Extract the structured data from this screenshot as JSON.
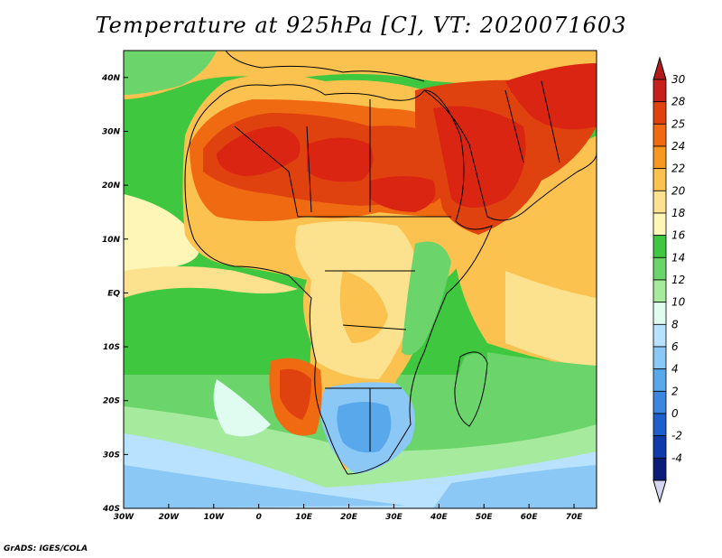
{
  "title": "Temperature at 925hPa [C], VT: 2020071603",
  "footer": "GrADS: IGES/COLA",
  "map": {
    "variable": "Temperature at 925hPa",
    "units": "C",
    "valid_time": "2020071603",
    "lon_range": [
      -30,
      75
    ],
    "lat_range": [
      -40,
      45
    ],
    "x_ticks": [
      "30W",
      "20W",
      "10W",
      "0",
      "10E",
      "20E",
      "30E",
      "40E",
      "50E",
      "60E",
      "70E"
    ],
    "y_ticks": [
      "40S",
      "30S",
      "20S",
      "10S",
      "EQ",
      "10N",
      "20N",
      "30N",
      "40N"
    ]
  },
  "colorbar": {
    "labels": [
      "30",
      "28",
      "25",
      "24",
      "22",
      "20",
      "18",
      "16",
      "14",
      "12",
      "10",
      "8",
      "6",
      "4",
      "2",
      "0",
      "-2",
      "-4"
    ],
    "colors": [
      "#c6201d",
      "#e0420f",
      "#f06a12",
      "#f89820",
      "#fbc250",
      "#fce28f",
      "#fef6b6",
      "#3fc83f",
      "#6bd56b",
      "#a6ea9e",
      "#e0fbf0",
      "#b8e2ff",
      "#8cc8f6",
      "#5aa8ec",
      "#3b86e0",
      "#1e5fcc",
      "#0f3ca8",
      "#0a1e78"
    ]
  },
  "features": {
    "hot_core_color": "#d92512",
    "ocean_colors": [
      "#e0fbf0",
      "#a6ea9e",
      "#6bd56b",
      "#3fc83f"
    ],
    "southern_cold_colors": [
      "#b8e2ff",
      "#8cc8f6",
      "#5aa8ec"
    ]
  }
}
